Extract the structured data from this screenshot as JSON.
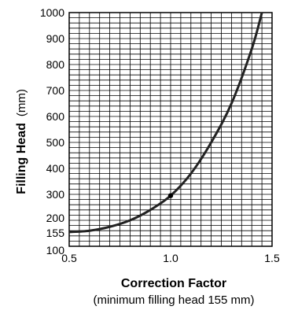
{
  "chart_data": {
    "type": "line",
    "x": [
      0.5,
      0.6,
      0.7,
      0.8,
      0.9,
      1.0,
      1.1,
      1.2,
      1.3,
      1.4,
      1.45
    ],
    "series": [
      {
        "values": [
          155,
          160,
          175,
          200,
          240,
          295,
          380,
          500,
          650,
          860,
          1000
        ]
      }
    ],
    "marked_point": {
      "x": 1.0,
      "y": 295
    },
    "xlabel": "Correction Factor",
    "xlabel_note": "(minimum filling head 155 mm)",
    "ylabel_bold": "Filling Head",
    "ylabel_unit": "(mm)",
    "x_ticks": [
      "0.5",
      "1.0",
      "1.5"
    ],
    "y_ticks": [
      "100",
      "155",
      "200",
      "300",
      "400",
      "500",
      "600",
      "700",
      "800",
      "900",
      "1000"
    ],
    "xlim": [
      0.5,
      1.5
    ],
    "ylim": [
      100,
      1000
    ],
    "grid": true
  }
}
